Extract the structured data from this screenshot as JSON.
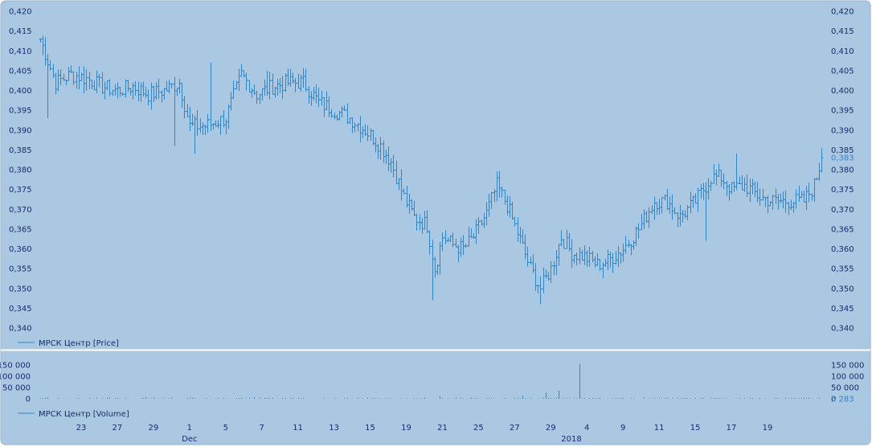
{
  "colors": {
    "background": "#abc8e2",
    "bars": "#2f86c9",
    "text": "#1a2a6c",
    "last_value": "#2f86c9",
    "separator": "#ffffff"
  },
  "chart_data": [
    {
      "type": "bar",
      "subtype": "ohlc",
      "legend": "МРСК Центр [Price]",
      "legend_position": "bottom-left",
      "grid": false,
      "ylim": [
        0.338,
        0.421
      ],
      "y_ticks": [
        "0,420",
        "0,415",
        "0,410",
        "0,405",
        "0,400",
        "0,395",
        "0,390",
        "0,385",
        "0,380",
        "0,375",
        "0,370",
        "0,365",
        "0,360",
        "0,355",
        "0,350",
        "0,345",
        "0,340"
      ],
      "y_tick_values": [
        0.42,
        0.415,
        0.41,
        0.405,
        0.4,
        0.395,
        0.39,
        0.385,
        0.38,
        0.375,
        0.37,
        0.365,
        0.36,
        0.355,
        0.35,
        0.345,
        0.34
      ],
      "last_value_label": "0,383",
      "last_value": 0.383,
      "anchors": [
        [
          0,
          0.413
        ],
        [
          6,
          0.402
        ],
        [
          12,
          0.404
        ],
        [
          18,
          0.403
        ],
        [
          24,
          0.401
        ],
        [
          30,
          0.4
        ],
        [
          36,
          0.401
        ],
        [
          42,
          0.399
        ],
        [
          48,
          0.4
        ],
        [
          54,
          0.402
        ],
        [
          58,
          0.391
        ],
        [
          64,
          0.391
        ],
        [
          72,
          0.393
        ],
        [
          78,
          0.404
        ],
        [
          84,
          0.399
        ],
        [
          90,
          0.401
        ],
        [
          96,
          0.402
        ],
        [
          102,
          0.402
        ],
        [
          108,
          0.397
        ],
        [
          114,
          0.395
        ],
        [
          120,
          0.393
        ],
        [
          126,
          0.39
        ],
        [
          132,
          0.386
        ],
        [
          136,
          0.382
        ],
        [
          141,
          0.373
        ],
        [
          145,
          0.368
        ],
        [
          150,
          0.366
        ],
        [
          153,
          0.355
        ],
        [
          156,
          0.363
        ],
        [
          160,
          0.361
        ],
        [
          164,
          0.36
        ],
        [
          168,
          0.363
        ],
        [
          173,
          0.369
        ],
        [
          177,
          0.376
        ],
        [
          181,
          0.371
        ],
        [
          185,
          0.364
        ],
        [
          190,
          0.355
        ],
        [
          194,
          0.35
        ],
        [
          198,
          0.355
        ],
        [
          202,
          0.363
        ],
        [
          206,
          0.359
        ],
        [
          211,
          0.358
        ],
        [
          216,
          0.356
        ],
        [
          220,
          0.357
        ],
        [
          226,
          0.36
        ],
        [
          232,
          0.365
        ],
        [
          238,
          0.372
        ],
        [
          243,
          0.372
        ],
        [
          248,
          0.368
        ],
        [
          254,
          0.372
        ],
        [
          260,
          0.378
        ],
        [
          264,
          0.378
        ],
        [
          268,
          0.375
        ],
        [
          273,
          0.376
        ],
        [
          279,
          0.373
        ],
        [
          284,
          0.372
        ],
        [
          290,
          0.372
        ],
        [
          296,
          0.372
        ],
        [
          300,
          0.376
        ],
        [
          303,
          0.383
        ]
      ],
      "spikes": [
        {
          "bar": 3,
          "low": 0.393
        },
        {
          "bar": 52,
          "low": 0.386
        },
        {
          "bar": 60,
          "low": 0.384
        },
        {
          "bar": 152,
          "low": 0.347
        },
        {
          "bar": 194,
          "low": 0.346
        },
        {
          "bar": 258,
          "low": 0.362
        },
        {
          "bar": 270,
          "high": 0.384
        },
        {
          "bar": 66,
          "high": 0.407
        },
        {
          "bar": 88,
          "high": 0.405
        }
      ]
    },
    {
      "type": "bar",
      "legend": "МРСК Центр [Volume]",
      "legend_position": "bottom-left",
      "grid": false,
      "ylim": [
        0,
        165000
      ],
      "y_ticks": [
        "150 000",
        "100 000",
        "50 000",
        "0"
      ],
      "y_tick_values": [
        150000,
        100000,
        50000,
        0
      ],
      "last_value_label": "5 283",
      "last_value": 5283,
      "spikes": [
        {
          "bar": 3,
          "value": 7000
        },
        {
          "bar": 41,
          "value": 8000
        },
        {
          "bar": 83,
          "value": 7000
        },
        {
          "bar": 155,
          "value": 11000
        },
        {
          "bar": 187,
          "value": 14000
        },
        {
          "bar": 196,
          "value": 28000
        },
        {
          "bar": 201,
          "value": 36000
        },
        {
          "bar": 209,
          "value": 155000
        }
      ]
    }
  ],
  "x_axis": {
    "tick_labels": [
      "23",
      "27",
      "29",
      "1",
      "5",
      "7",
      "11",
      "13",
      "15",
      "19",
      "21",
      "25",
      "27",
      "29",
      "4",
      "9",
      "11",
      "15",
      "17",
      "19"
    ],
    "tick_positions": [
      16,
      30,
      44,
      58,
      72,
      86,
      100,
      114,
      128,
      142,
      156,
      170,
      184,
      198,
      212,
      226,
      240,
      254,
      268,
      282
    ],
    "bar_count": 304,
    "month_labels": [
      {
        "text": "Dec",
        "position": 58
      },
      {
        "text": "2018",
        "position": 206
      }
    ]
  }
}
